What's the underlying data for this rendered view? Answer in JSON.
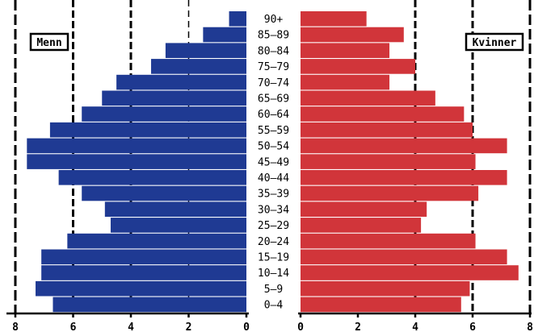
{
  "chart_data": {
    "type": "bar",
    "orientation": "horizontal-population-pyramid",
    "categories": [
      "0-4",
      "5-9",
      "10-14",
      "15-19",
      "20-24",
      "25-29",
      "30-34",
      "35-39",
      "40-44",
      "45-49",
      "50-54",
      "55-59",
      "60-64",
      "65-69",
      "70-74",
      "75-79",
      "80-84",
      "85-89",
      "90+"
    ],
    "category_labels": [
      "0–4",
      "5–9",
      "10–14",
      "15–19",
      "20–24",
      "25–29",
      "30–34",
      "35–39",
      "40–44",
      "45–49",
      "50–54",
      "55–59",
      "60–64",
      "65–69",
      "70–74",
      "75–79",
      "80–84",
      "85–89",
      "90+"
    ],
    "series": [
      {
        "name": "Menn",
        "side": "left",
        "color": "#1f3a93",
        "values": [
          6.7,
          7.3,
          7.1,
          7.1,
          6.2,
          4.7,
          4.9,
          5.7,
          6.5,
          7.6,
          7.6,
          6.8,
          5.7,
          5.0,
          4.5,
          3.3,
          2.8,
          1.5,
          0.6
        ]
      },
      {
        "name": "Kvinner",
        "side": "right",
        "color": "#d1353a",
        "values": [
          5.6,
          5.9,
          7.6,
          7.2,
          6.1,
          4.2,
          4.4,
          6.2,
          7.2,
          6.1,
          7.2,
          6.0,
          5.7,
          4.7,
          3.1,
          4.0,
          3.1,
          3.6,
          2.3
        ]
      }
    ],
    "left_axis": {
      "ticks": [
        8,
        6,
        4,
        2,
        0
      ],
      "tick_labels": [
        "8",
        "6",
        "4",
        "2",
        "0"
      ],
      "range": [
        0,
        8
      ]
    },
    "right_axis": {
      "ticks": [
        0,
        2,
        4,
        6,
        8
      ],
      "tick_labels": [
        "0",
        "2",
        "4",
        "6",
        "8"
      ],
      "range": [
        0,
        8
      ]
    },
    "gridlines": [
      4,
      6,
      8
    ],
    "legend_labels": [
      "Menn",
      "Kvinner"
    ],
    "legend_placement": "top-left and top-right"
  },
  "colors": {
    "men": "#1f3a93",
    "women": "#d1353a",
    "grid": "#000000"
  }
}
